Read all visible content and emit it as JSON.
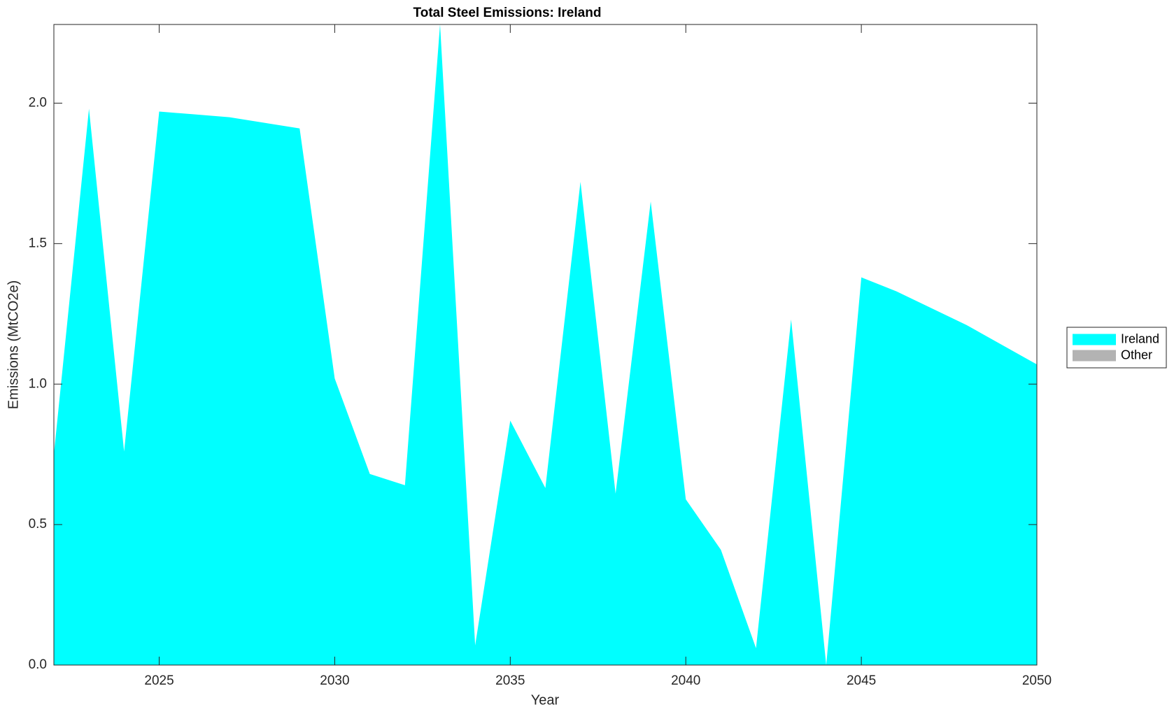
{
  "chart_data": {
    "type": "stacked_area",
    "title": "Total Steel Emissions: Ireland",
    "x_label": "Year",
    "y_label": "Emissions (MtCO2e)",
    "x": [
      2022,
      2023,
      2024,
      2025,
      2026,
      2027,
      2028,
      2029,
      2030,
      2031,
      2032,
      2033,
      2034,
      2035,
      2036,
      2037,
      2038,
      2039,
      2040,
      2041,
      2042,
      2043,
      2044,
      2045,
      2046,
      2047,
      2048,
      2049,
      2050
    ],
    "series": [
      {
        "name": "Ireland",
        "color": "#00ffff",
        "values": [
          0.75,
          1.98,
          0.76,
          1.97,
          1.96,
          1.95,
          1.93,
          1.91,
          1.02,
          0.68,
          0.64,
          2.28,
          0.07,
          0.87,
          0.63,
          1.72,
          0.61,
          1.65,
          0.59,
          0.41,
          0.06,
          1.23,
          0.0,
          1.38,
          1.33,
          1.27,
          1.21,
          1.14,
          1.07
        ]
      },
      {
        "name": "Other",
        "color": "#b3b3b3",
        "values": [
          0,
          0,
          0,
          0,
          0,
          0,
          0,
          0,
          0,
          0,
          0,
          0,
          0,
          0,
          0,
          0,
          0,
          0,
          0,
          0,
          0,
          0,
          0,
          0,
          0,
          0,
          0,
          0,
          0
        ]
      }
    ],
    "xlim": [
      2022,
      2050
    ],
    "xticks": [
      2025,
      2030,
      2035,
      2040,
      2045,
      2050
    ],
    "ylim": [
      0,
      2.28
    ],
    "yticks": [
      {
        "value": 0,
        "label": "0.0"
      },
      0.5,
      {
        "value": 1,
        "label": "1.0"
      },
      1.5,
      {
        "value": 2,
        "label": "2.0"
      }
    ],
    "legend": "outside-right"
  }
}
